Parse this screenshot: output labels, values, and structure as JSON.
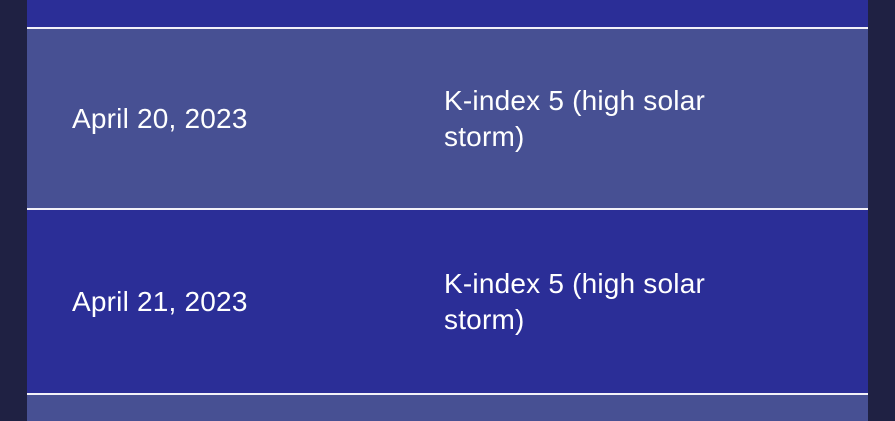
{
  "table": {
    "description": "Striped data table of dates and geomagnetic K-index readings, dark theme",
    "rows": [
      {
        "date": "April 20, 2023",
        "value": "K-index 5 (high solar storm)"
      },
      {
        "date": "April 21, 2023",
        "value": "K-index 5 (high solar storm)"
      }
    ]
  },
  "colors": {
    "page_background": "#1F2143",
    "row_indigo": "#2B2E97",
    "row_slate": "#475093",
    "divider": "#F2F1F8",
    "text": "#FFFFFF"
  }
}
